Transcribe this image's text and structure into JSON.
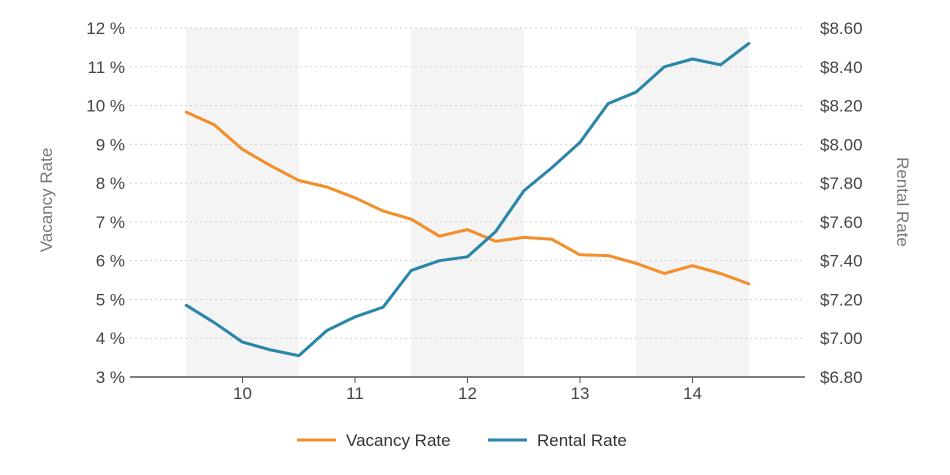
{
  "chart_data": {
    "type": "line",
    "x_axis": {
      "categories": [
        "10",
        "11",
        "12",
        "13",
        "14"
      ]
    },
    "y_left": {
      "title": "Vacancy Rate",
      "min": 3,
      "max": 12,
      "ticks": [
        "3 %",
        "4 %",
        "5 %",
        "6 %",
        "7 %",
        "8 %",
        "9 %",
        "10 %",
        "11 %",
        "12 %"
      ]
    },
    "y_right": {
      "title": "Rental Rate",
      "min": 6.8,
      "max": 8.6,
      "ticks": [
        "$6.80",
        "$7.00",
        "$7.20",
        "$7.40",
        "$7.60",
        "$7.80",
        "$8.00",
        "$8.20",
        "$8.40",
        "$8.60"
      ]
    },
    "x": [
      9.5,
      9.75,
      10.0,
      10.25,
      10.5,
      10.75,
      11.0,
      11.25,
      11.5,
      11.75,
      12.0,
      12.25,
      12.5,
      12.75,
      13.0,
      13.25,
      13.5,
      13.75,
      14.0,
      14.25,
      14.5
    ],
    "series": [
      {
        "name": "Vacancy Rate",
        "axis": "left",
        "color": "#f28f2b",
        "values": [
          9.83,
          9.5,
          8.87,
          8.45,
          8.07,
          7.9,
          7.62,
          7.28,
          7.07,
          6.63,
          6.8,
          6.5,
          6.6,
          6.55,
          6.15,
          6.13,
          5.93,
          5.67,
          5.87,
          5.67,
          5.4
        ]
      },
      {
        "name": "Rental Rate",
        "axis": "right",
        "color": "#2a86a8",
        "values": [
          7.17,
          7.08,
          6.98,
          6.94,
          6.91,
          7.04,
          7.11,
          7.16,
          7.35,
          7.4,
          7.42,
          7.55,
          7.76,
          7.88,
          8.01,
          8.21,
          8.27,
          8.4,
          8.44,
          8.41,
          8.52
        ]
      }
    ],
    "shaded_bands": [
      [
        9.5,
        10.5
      ],
      [
        11.5,
        12.5
      ],
      [
        13.5,
        14.5
      ]
    ],
    "grid": "horizontal-dotted",
    "legend": {
      "position": "bottom-center",
      "items": [
        "Vacancy Rate",
        "Rental Rate"
      ]
    }
  }
}
